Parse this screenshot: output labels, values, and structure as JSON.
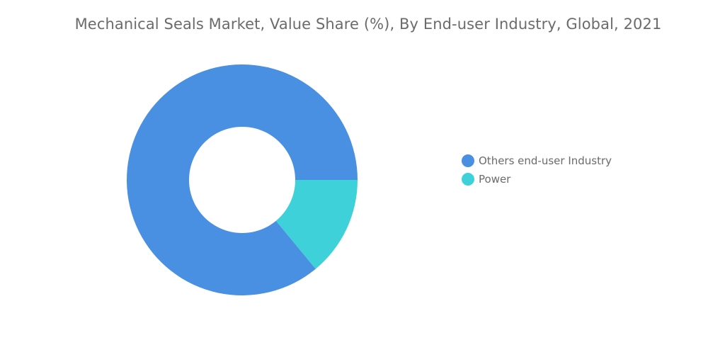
{
  "chart_data": {
    "type": "pie",
    "style": "donut",
    "title": "Mechanical Seals Market, Value Share (%), By End-user Industry, Global, 2021",
    "categories": [
      "Others end-user Industry",
      "Power"
    ],
    "values": [
      86,
      14
    ],
    "colors": [
      "#4a90e2",
      "#3fd1d9"
    ],
    "legend_position": "right"
  }
}
